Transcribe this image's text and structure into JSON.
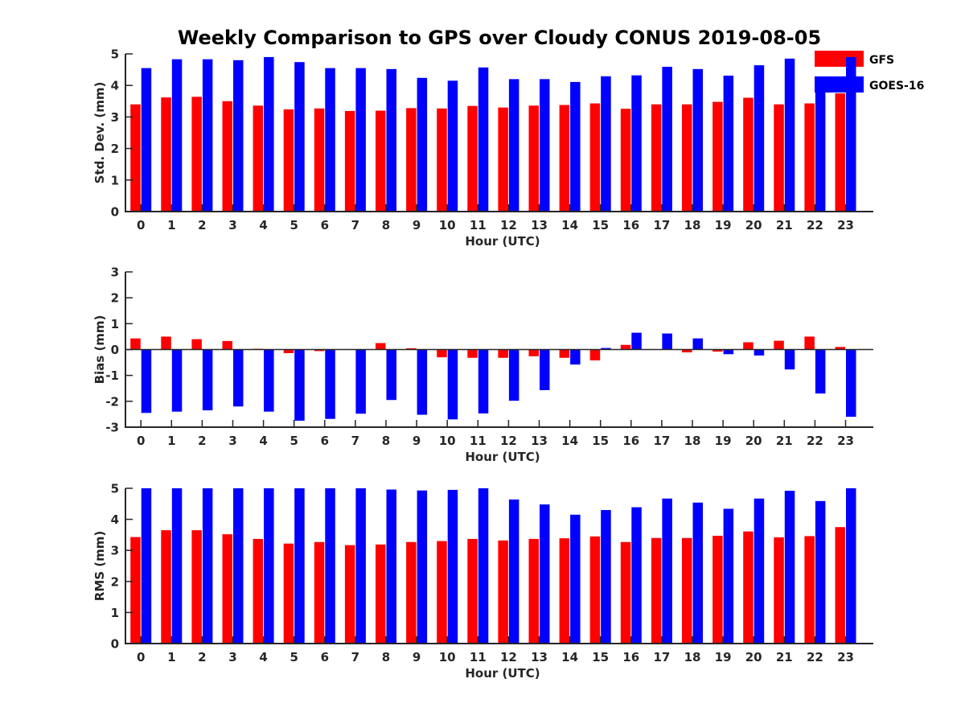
{
  "title": "Weekly Comparison to GPS over Cloudy CONUS 2019-08-05",
  "legend": [
    {
      "label": "GFS",
      "color": "#ff0000"
    },
    {
      "label": "GOES-16",
      "color": "#0000ff"
    }
  ],
  "chart_data": [
    {
      "type": "bar",
      "xlabel": "Hour (UTC)",
      "ylabel": "Std. Dev. (mm)",
      "ylim": [
        0,
        5
      ],
      "yticks": [
        0,
        1,
        2,
        3,
        4,
        5
      ],
      "categories": [
        "0",
        "1",
        "2",
        "3",
        "4",
        "5",
        "6",
        "7",
        "8",
        "9",
        "10",
        "11",
        "12",
        "13",
        "14",
        "15",
        "16",
        "17",
        "18",
        "19",
        "20",
        "21",
        "22",
        "23"
      ],
      "series": [
        {
          "name": "GFS",
          "color": "#ff0000",
          "values": [
            3.4,
            3.62,
            3.64,
            3.5,
            3.36,
            3.24,
            3.27,
            3.19,
            3.2,
            3.28,
            3.27,
            3.35,
            3.3,
            3.36,
            3.38,
            3.43,
            3.26,
            3.4,
            3.4,
            3.48,
            3.61,
            3.4,
            3.43,
            3.75
          ]
        },
        {
          "name": "GOES-16",
          "color": "#0000ff",
          "values": [
            4.55,
            4.83,
            4.83,
            4.8,
            4.9,
            4.74,
            4.55,
            4.55,
            4.52,
            4.24,
            4.15,
            4.57,
            4.2,
            4.2,
            4.11,
            4.29,
            4.32,
            4.59,
            4.52,
            4.31,
            4.64,
            4.85,
            4.27,
            4.9
          ]
        }
      ]
    },
    {
      "type": "bar",
      "xlabel": "Hour (UTC)",
      "ylabel": "Bias (mm)",
      "ylim": [
        -3,
        3
      ],
      "yticks": [
        -3,
        -2,
        -1,
        0,
        1,
        2,
        3
      ],
      "categories": [
        "0",
        "1",
        "2",
        "3",
        "4",
        "5",
        "6",
        "7",
        "8",
        "9",
        "10",
        "11",
        "12",
        "13",
        "14",
        "15",
        "16",
        "17",
        "18",
        "19",
        "20",
        "21",
        "22",
        "23"
      ],
      "series": [
        {
          "name": "GFS",
          "color": "#ff0000",
          "values": [
            0.43,
            0.5,
            0.4,
            0.33,
            0.03,
            -0.14,
            -0.06,
            0.0,
            0.25,
            0.05,
            -0.3,
            -0.32,
            -0.32,
            -0.26,
            -0.32,
            -0.42,
            0.18,
            0.0,
            -0.11,
            -0.08,
            0.28,
            0.34,
            0.5,
            0.1
          ]
        },
        {
          "name": "GOES-16",
          "color": "#0000ff",
          "values": [
            -2.45,
            -2.4,
            -2.35,
            -2.2,
            -2.4,
            -2.75,
            -2.68,
            -2.48,
            -1.95,
            -2.52,
            -2.7,
            -2.47,
            -1.98,
            -1.57,
            -0.58,
            0.06,
            0.65,
            0.62,
            0.43,
            -0.18,
            -0.23,
            -0.77,
            -1.7,
            -2.6
          ]
        }
      ]
    },
    {
      "type": "bar",
      "xlabel": "Hour (UTC)",
      "ylabel": "RMS (mm)",
      "ylim": [
        0,
        5
      ],
      "yticks": [
        0,
        1,
        2,
        3,
        4,
        5
      ],
      "categories": [
        "0",
        "1",
        "2",
        "3",
        "4",
        "5",
        "6",
        "7",
        "8",
        "9",
        "10",
        "11",
        "12",
        "13",
        "14",
        "15",
        "16",
        "17",
        "18",
        "19",
        "20",
        "21",
        "22",
        "23"
      ],
      "series": [
        {
          "name": "GFS",
          "color": "#ff0000",
          "values": [
            3.43,
            3.65,
            3.65,
            3.52,
            3.37,
            3.22,
            3.27,
            3.17,
            3.19,
            3.27,
            3.3,
            3.37,
            3.32,
            3.37,
            3.39,
            3.45,
            3.27,
            3.4,
            3.4,
            3.47,
            3.61,
            3.42,
            3.46,
            3.75
          ]
        },
        {
          "name": "GOES-16",
          "color": "#0000ff",
          "values": [
            5.0,
            5.0,
            5.0,
            5.0,
            5.0,
            5.0,
            5.0,
            5.0,
            4.96,
            4.93,
            4.95,
            5.0,
            4.64,
            4.48,
            4.15,
            4.3,
            4.39,
            4.67,
            4.54,
            4.34,
            4.67,
            4.92,
            4.59,
            5.0
          ]
        }
      ]
    }
  ]
}
